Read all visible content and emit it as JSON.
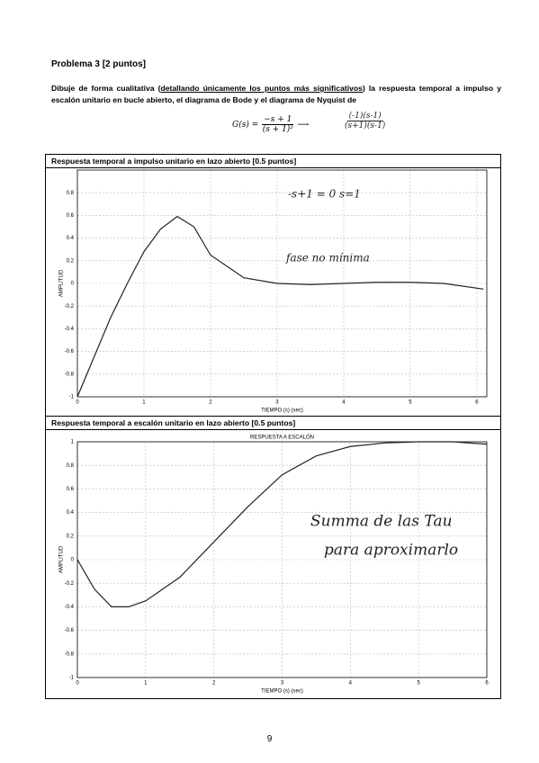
{
  "header": {
    "title": "Problema 3 [2 puntos]",
    "statement_start": "Dibuje de forma cualitativa (",
    "statement_underlined": "detallando únicamente los puntos más significativos",
    "statement_end": ") la respuesta temporal a impulso y escalón unitario en bucle abierto, el diagrama de Bode y el diagrama de Nyquist de"
  },
  "formula": {
    "lhs": "G(s) =",
    "numerator": "−s + 1",
    "denominator": "(s + 1)²",
    "handwritten_numerator": "(-1)(s-1)",
    "handwritten_denominator": "(s+1)(s-1)"
  },
  "panels": [
    {
      "heading": "Respuesta temporal a impulso unitario en lazo abierto [0.5 puntos]"
    },
    {
      "heading": "Respuesta temporal a escalón unitario en lazo abierto [0.5 puntos]"
    }
  ],
  "chart_data": [
    {
      "type": "line",
      "xlabel": "TIEMPO (s) (sec)",
      "ylabel": "AMPLITUD",
      "x": [
        0,
        0.25,
        0.5,
        0.75,
        1,
        1.25,
        1.5,
        1.75,
        2,
        2.5,
        3,
        3.5,
        4,
        4.5,
        5,
        5.5,
        6.1
      ],
      "values": [
        -1,
        -0.65,
        -0.3,
        0.0,
        0.28,
        0.48,
        0.59,
        0.5,
        0.25,
        0.05,
        0.0,
        -0.01,
        0.0,
        0.01,
        0.01,
        0.0,
        -0.05
      ],
      "color": "#222222",
      "xlim": [
        0,
        6.15
      ],
      "ylim": [
        -1,
        1
      ],
      "xticks": [
        0,
        1,
        2,
        3,
        4,
        5,
        6
      ],
      "yticks": [
        -1,
        -0.8,
        -0.6,
        -0.4,
        -0.2,
        0,
        0.2,
        0.4,
        0.6,
        0.8
      ],
      "grid": true,
      "annotations": [
        "-s+1 = 0   s=1",
        "fase no mínima"
      ]
    },
    {
      "type": "line",
      "title": "RESPUESTA A ESCALÓN",
      "xlabel": "TIEMPO (s) (sec)",
      "ylabel": "AMPLITUD",
      "x": [
        0,
        0.25,
        0.5,
        0.75,
        1,
        1.5,
        2,
        2.5,
        3,
        3.5,
        4,
        4.5,
        5,
        5.5,
        6
      ],
      "values": [
        0,
        -0.25,
        -0.4,
        -0.4,
        -0.35,
        -0.15,
        0.15,
        0.45,
        0.72,
        0.88,
        0.96,
        0.99,
        1.0,
        1.0,
        0.98
      ],
      "color": "#222222",
      "xlim": [
        0,
        6
      ],
      "ylim": [
        -1,
        1
      ],
      "xticks": [
        0,
        1,
        2,
        3,
        4,
        5,
        6
      ],
      "yticks": [
        -1,
        -0.8,
        -0.6,
        -0.4,
        -0.2,
        0,
        0.2,
        0.4,
        0.6,
        0.8,
        1
      ],
      "grid": true,
      "annotations": [
        "Summa de las Tau",
        "para aproximarlo"
      ]
    }
  ],
  "footer": {
    "page_number": "9"
  }
}
